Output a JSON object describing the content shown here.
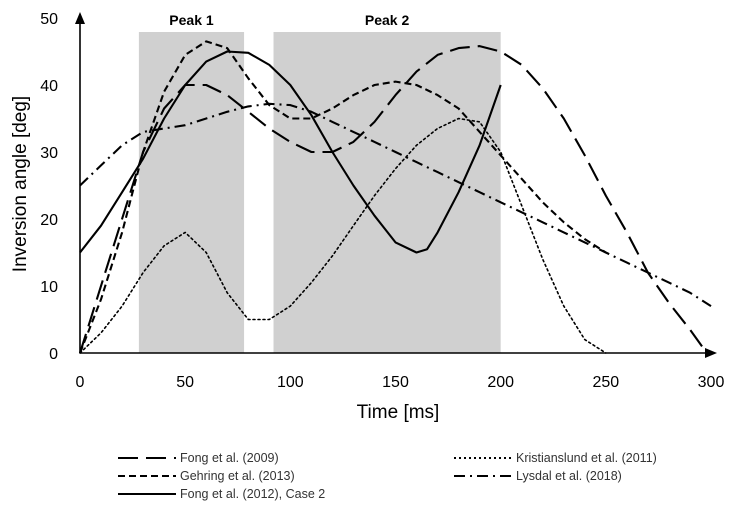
{
  "chart_data": {
    "type": "line",
    "title": "",
    "xlabel": "Time [ms]",
    "ylabel": "Inversion angle [deg]",
    "xlim": [
      0,
      300
    ],
    "ylim": [
      0,
      50
    ],
    "xticks": [
      "0",
      "50",
      "100",
      "150",
      "200",
      "250",
      "300"
    ],
    "yticks": [
      "0",
      "10",
      "20",
      "30",
      "40",
      "50"
    ],
    "grid": false,
    "shaded_regions": [
      {
        "label": "Peak 1",
        "x": [
          28,
          78
        ]
      },
      {
        "label": "Peak 2",
        "x": [
          92,
          200
        ]
      }
    ],
    "series": [
      {
        "name": "Fong et al. (2009)",
        "style": "long-dash",
        "x": [
          0,
          15,
          30,
          40,
          50,
          60,
          70,
          80,
          90,
          100,
          110,
          120,
          130,
          140,
          150,
          160,
          170,
          180,
          190,
          200,
          210,
          220,
          230,
          240,
          250,
          260,
          270,
          280,
          290,
          298
        ],
        "y": [
          0,
          15,
          30,
          36.5,
          40,
          40,
          38.5,
          36,
          33.5,
          31.5,
          30,
          30,
          31.5,
          34.5,
          38.5,
          42,
          44.5,
          45.5,
          45.8,
          45,
          43,
          39.5,
          35,
          29.5,
          23.5,
          18,
          12,
          7.5,
          3.5,
          0
        ]
      },
      {
        "name": "Gehring et al. (2013)",
        "style": "short-dash",
        "x": [
          0,
          10,
          20,
          30,
          40,
          50,
          60,
          70,
          80,
          90,
          100,
          110,
          120,
          130,
          140,
          150,
          160,
          170,
          180,
          190,
          200,
          210,
          220,
          230,
          240,
          250
        ],
        "y": [
          0,
          8,
          18,
          30,
          39,
          44.5,
          46.5,
          45.5,
          41,
          37,
          35,
          35,
          36.5,
          38.5,
          40,
          40.5,
          40,
          38.5,
          36.5,
          33,
          29.5,
          26,
          22.5,
          19.5,
          17,
          15
        ]
      },
      {
        "name": "Fong et al. (2012), Case 2",
        "style": "solid",
        "x": [
          0,
          10,
          20,
          30,
          40,
          50,
          60,
          70,
          80,
          90,
          100,
          110,
          120,
          130,
          140,
          150,
          160,
          165,
          170,
          180,
          190,
          200
        ],
        "y": [
          15,
          19,
          24,
          29,
          35,
          40,
          43.5,
          45,
          44.8,
          43,
          40,
          35.5,
          30,
          25,
          20.5,
          16.5,
          15,
          15.5,
          18,
          24,
          31,
          40
        ]
      },
      {
        "name": "Kristianslund et al. (2011)",
        "style": "dotted",
        "x": [
          0,
          10,
          20,
          30,
          40,
          50,
          60,
          70,
          80,
          90,
          100,
          110,
          120,
          130,
          140,
          150,
          160,
          170,
          180,
          190,
          200,
          210,
          220,
          230,
          240,
          250
        ],
        "y": [
          0,
          3,
          7,
          12,
          16,
          18,
          15,
          9,
          5,
          5,
          7,
          10.5,
          14.5,
          19,
          23.5,
          27.5,
          31,
          33.5,
          35,
          34.5,
          30,
          22,
          14,
          7,
          2,
          0
        ]
      },
      {
        "name": "Lysdal et al. (2018)",
        "style": "dash-dot",
        "x": [
          0,
          10,
          20,
          30,
          40,
          50,
          60,
          70,
          80,
          90,
          100,
          110,
          120,
          130,
          140,
          150,
          160,
          170,
          180,
          190,
          200,
          210,
          220,
          230,
          240,
          250,
          260,
          270,
          280,
          290,
          300
        ],
        "y": [
          25,
          28,
          31,
          33,
          33.5,
          34,
          35,
          36,
          36.8,
          37.2,
          37,
          36,
          34.5,
          33,
          31.5,
          30,
          28.5,
          27,
          25.5,
          24,
          22.5,
          21,
          19.5,
          18,
          16.5,
          15,
          13.5,
          12,
          10.5,
          9,
          7
        ]
      }
    ],
    "legend": {
      "placement": "bottom",
      "columns": 2
    }
  }
}
